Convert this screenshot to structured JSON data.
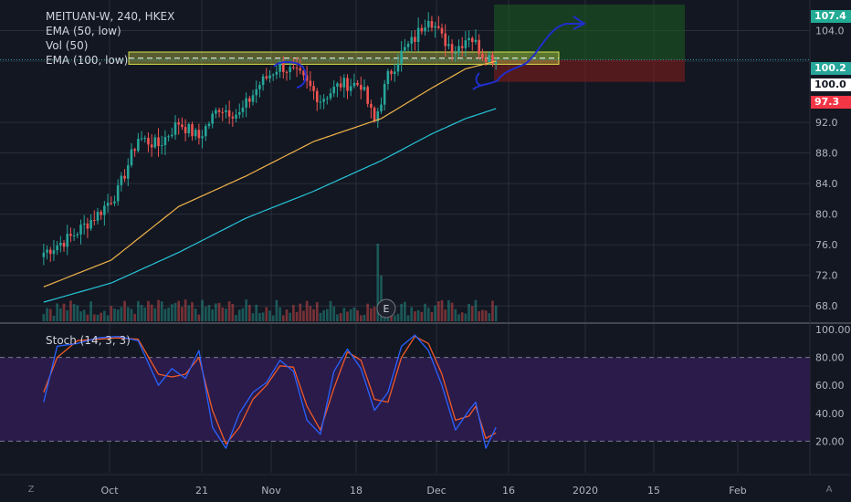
{
  "legend": {
    "symbol": "MEITUAN-W, 240, HKEX",
    "ema50": "EMA (50, low)",
    "vol": "Vol (50)",
    "ema100": "EMA (100, low)",
    "stoch": "Stoch (14, 3, 3)"
  },
  "price_tags": [
    {
      "label": "107.4",
      "color": "#22ab94"
    },
    {
      "label": "100.2",
      "color": "#26a69a"
    },
    {
      "label": "100.0",
      "color": "#ffffff"
    },
    {
      "label": "97.3",
      "color": "#f23645"
    }
  ],
  "corner": {
    "left": "Z",
    "right": "A"
  },
  "event_marker": "E",
  "colors": {
    "background": "#131722",
    "up": "#26a69a",
    "down": "#ef5350",
    "ema50": "#f0b44a",
    "ema100": "#26c6da",
    "stoch_k": "#2962ff",
    "stoch_d": "#f05a28",
    "stoch_band": "#2a1b4a",
    "drawing": "#1f2ecc",
    "zone": "#d8e04a"
  },
  "chart_data": {
    "type": "candlestick",
    "title": "MEITUAN-W, 240, HKEX",
    "price_axis_ticks": [
      "104.0",
      "100.0",
      "92.0",
      "88.0",
      "84.0",
      "80.0",
      "76.0",
      "72.0",
      "68.0"
    ],
    "price_axis_range": [
      66,
      108
    ],
    "time_axis_labels": [
      "Oct",
      "21",
      "Nov",
      "18",
      "Dec",
      "16",
      "2020",
      "15",
      "Feb"
    ],
    "stoch_axis_ticks": [
      "100.00",
      "80.00",
      "60.00",
      "40.00",
      "20.00"
    ],
    "stoch_range": [
      0,
      100
    ],
    "stoch_band": [
      20,
      80
    ],
    "price_series_nodes": [
      {
        "i": 0,
        "p": 75.0
      },
      {
        "i": 8,
        "p": 77.0
      },
      {
        "i": 16,
        "p": 80.0
      },
      {
        "i": 22,
        "p": 83.0
      },
      {
        "i": 28,
        "p": 90.0
      },
      {
        "i": 34,
        "p": 89.0
      },
      {
        "i": 40,
        "p": 92.0
      },
      {
        "i": 46,
        "p": 90.0
      },
      {
        "i": 52,
        "p": 94.0
      },
      {
        "i": 58,
        "p": 93.0
      },
      {
        "i": 64,
        "p": 97.0
      },
      {
        "i": 70,
        "p": 99.5
      },
      {
        "i": 76,
        "p": 98.0
      },
      {
        "i": 82,
        "p": 95.0
      },
      {
        "i": 88,
        "p": 97.0
      },
      {
        "i": 94,
        "p": 97.0
      },
      {
        "i": 98,
        "p": 92.0
      },
      {
        "i": 102,
        "p": 98.0
      },
      {
        "i": 106,
        "p": 101.0
      },
      {
        "i": 110,
        "p": 103.0
      },
      {
        "i": 114,
        "p": 106.0
      },
      {
        "i": 118,
        "p": 103.0
      },
      {
        "i": 122,
        "p": 101.5
      },
      {
        "i": 126,
        "p": 103.5
      },
      {
        "i": 130,
        "p": 101.0
      },
      {
        "i": 134,
        "p": 100.2
      }
    ],
    "ema50_nodes": [
      {
        "i": 0,
        "p": 70.5
      },
      {
        "i": 20,
        "p": 74.0
      },
      {
        "i": 40,
        "p": 81.0
      },
      {
        "i": 60,
        "p": 85.0
      },
      {
        "i": 80,
        "p": 89.5
      },
      {
        "i": 100,
        "p": 92.5
      },
      {
        "i": 115,
        "p": 96.5
      },
      {
        "i": 125,
        "p": 99.0
      },
      {
        "i": 134,
        "p": 100.0
      }
    ],
    "ema100_nodes": [
      {
        "i": 0,
        "p": 68.5
      },
      {
        "i": 20,
        "p": 71.0
      },
      {
        "i": 40,
        "p": 75.0
      },
      {
        "i": 60,
        "p": 79.5
      },
      {
        "i": 80,
        "p": 83.0
      },
      {
        "i": 100,
        "p": 87.0
      },
      {
        "i": 115,
        "p": 90.5
      },
      {
        "i": 125,
        "p": 92.5
      },
      {
        "i": 134,
        "p": 93.8
      }
    ],
    "volume_spike_index": 99,
    "support_zone": [
      99.6,
      101.2
    ],
    "target_zone": [
      100.2,
      107.4
    ],
    "stop_zone": [
      97.3,
      100.2
    ],
    "stoch_k_nodes": [
      {
        "i": 0,
        "v": 48
      },
      {
        "i": 4,
        "v": 88
      },
      {
        "i": 10,
        "v": 90
      },
      {
        "i": 16,
        "v": 94
      },
      {
        "i": 22,
        "v": 95
      },
      {
        "i": 28,
        "v": 92
      },
      {
        "i": 34,
        "v": 60
      },
      {
        "i": 38,
        "v": 72
      },
      {
        "i": 42,
        "v": 65
      },
      {
        "i": 46,
        "v": 85
      },
      {
        "i": 50,
        "v": 30
      },
      {
        "i": 54,
        "v": 15
      },
      {
        "i": 58,
        "v": 40
      },
      {
        "i": 62,
        "v": 55
      },
      {
        "i": 66,
        "v": 62
      },
      {
        "i": 70,
        "v": 78
      },
      {
        "i": 74,
        "v": 70
      },
      {
        "i": 78,
        "v": 35
      },
      {
        "i": 82,
        "v": 25
      },
      {
        "i": 86,
        "v": 70
      },
      {
        "i": 90,
        "v": 86
      },
      {
        "i": 94,
        "v": 72
      },
      {
        "i": 98,
        "v": 42
      },
      {
        "i": 102,
        "v": 55
      },
      {
        "i": 106,
        "v": 88
      },
      {
        "i": 110,
        "v": 96
      },
      {
        "i": 114,
        "v": 85
      },
      {
        "i": 118,
        "v": 60
      },
      {
        "i": 122,
        "v": 28
      },
      {
        "i": 126,
        "v": 42
      },
      {
        "i": 128,
        "v": 48
      },
      {
        "i": 131,
        "v": 15
      },
      {
        "i": 134,
        "v": 30
      }
    ],
    "stoch_d_nodes": [
      {
        "i": 0,
        "v": 55
      },
      {
        "i": 4,
        "v": 80
      },
      {
        "i": 10,
        "v": 92
      },
      {
        "i": 16,
        "v": 93
      },
      {
        "i": 22,
        "v": 94
      },
      {
        "i": 28,
        "v": 93
      },
      {
        "i": 34,
        "v": 68
      },
      {
        "i": 38,
        "v": 66
      },
      {
        "i": 42,
        "v": 68
      },
      {
        "i": 46,
        "v": 80
      },
      {
        "i": 50,
        "v": 42
      },
      {
        "i": 54,
        "v": 18
      },
      {
        "i": 58,
        "v": 30
      },
      {
        "i": 62,
        "v": 50
      },
      {
        "i": 66,
        "v": 60
      },
      {
        "i": 70,
        "v": 74
      },
      {
        "i": 74,
        "v": 73
      },
      {
        "i": 78,
        "v": 45
      },
      {
        "i": 82,
        "v": 28
      },
      {
        "i": 86,
        "v": 58
      },
      {
        "i": 90,
        "v": 84
      },
      {
        "i": 94,
        "v": 78
      },
      {
        "i": 98,
        "v": 50
      },
      {
        "i": 102,
        "v": 48
      },
      {
        "i": 106,
        "v": 80
      },
      {
        "i": 110,
        "v": 95
      },
      {
        "i": 114,
        "v": 90
      },
      {
        "i": 118,
        "v": 68
      },
      {
        "i": 122,
        "v": 35
      },
      {
        "i": 126,
        "v": 38
      },
      {
        "i": 128,
        "v": 45
      },
      {
        "i": 131,
        "v": 22
      },
      {
        "i": 134,
        "v": 26
      }
    ]
  }
}
